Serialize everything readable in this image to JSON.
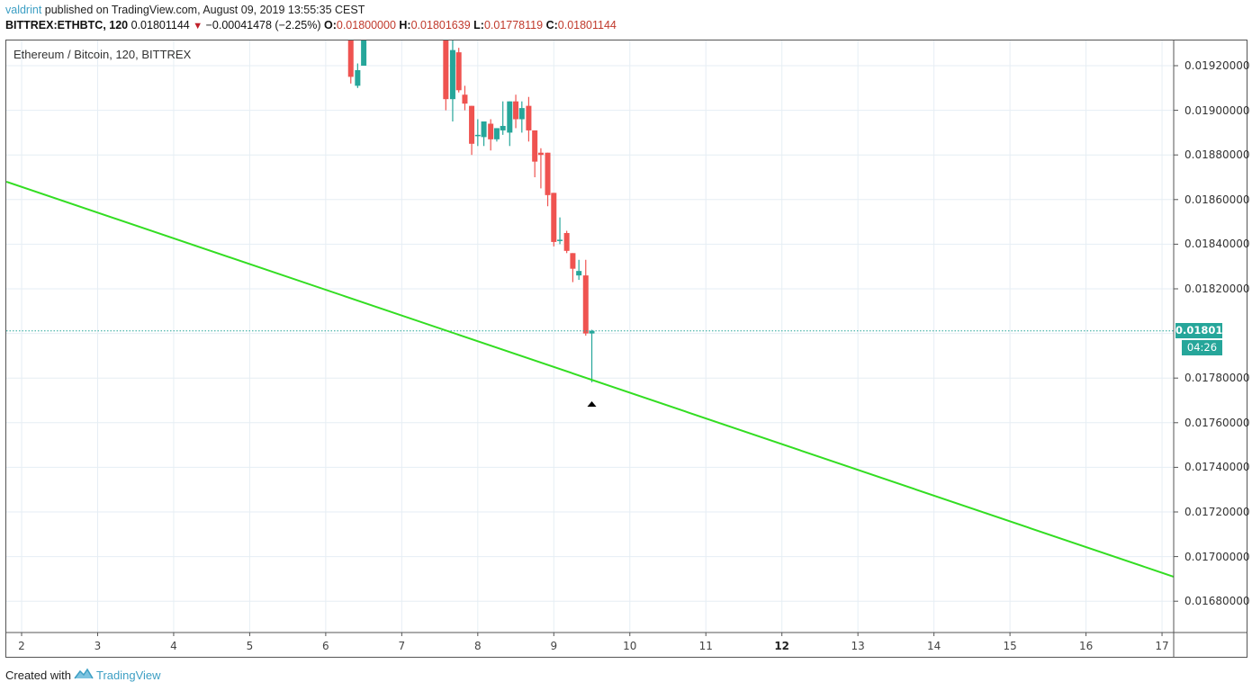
{
  "header": {
    "user": "valdrint",
    "published_text": " published on TradingView.com, August 09, 2019 13:55:35 CEST"
  },
  "quote": {
    "symbol": "BITTREX:ETHBTC, 120",
    "last": "0.01801144",
    "change_arrow": "▼",
    "change": "−0.00041478 (−2.25%)",
    "o_label": "O:",
    "o": "0.01800000",
    "h_label": "H:",
    "h": "0.01801639",
    "l_label": "L:",
    "l": "0.01778119",
    "c_label": "C:",
    "c": "0.01801144"
  },
  "legend": {
    "title": "Ethereum / Bitcoin, 120, BITTREX"
  },
  "price_tag": {
    "last": "0.01801144",
    "countdown": "04:26"
  },
  "footer": {
    "created_with": "Created with",
    "brand": "TradingView"
  },
  "colors": {
    "up": "#26a69a",
    "down": "#ef5350",
    "trendline": "#33dd22",
    "grid": "#e6eef4",
    "last_price_line": "#26a69a"
  },
  "chart_data": {
    "type": "candlestick",
    "title": "Ethereum / Bitcoin, 120, BITTREX",
    "xlabel": "",
    "ylabel": "",
    "x_ticks": [
      "2",
      "3",
      "4",
      "5",
      "6",
      "7",
      "8",
      "9",
      "10",
      "11",
      "12",
      "13",
      "14",
      "15",
      "16",
      "17"
    ],
    "y_ticks": [
      "0.01920000",
      "0.01900000",
      "0.01880000",
      "0.01860000",
      "0.01840000",
      "0.01820000",
      "0.01780000",
      "0.01760000",
      "0.01740000",
      "0.01720000",
      "0.01700000",
      "0.01680000"
    ],
    "ylim": [
      0.0167,
      0.01932
    ],
    "grid": true,
    "last_price": 0.01801144,
    "candles": [
      {
        "x": 6.33,
        "o": 0.0194,
        "h": 0.0194,
        "l": 0.01912,
        "c": 0.01915
      },
      {
        "x": 6.42,
        "o": 0.01911,
        "h": 0.01921,
        "l": 0.0191,
        "c": 0.01918
      },
      {
        "x": 6.5,
        "o": 0.0192,
        "h": 0.0194,
        "l": 0.0192,
        "c": 0.0194
      },
      {
        "x": 7.58,
        "o": 0.0194,
        "h": 0.0194,
        "l": 0.019,
        "c": 0.01905
      },
      {
        "x": 7.67,
        "o": 0.01905,
        "h": 0.01937,
        "l": 0.01895,
        "c": 0.01927
      },
      {
        "x": 7.75,
        "o": 0.01926,
        "h": 0.01928,
        "l": 0.01908,
        "c": 0.01909
      },
      {
        "x": 7.83,
        "o": 0.01907,
        "h": 0.01911,
        "l": 0.019,
        "c": 0.01903
      },
      {
        "x": 7.92,
        "o": 0.01902,
        "h": 0.01902,
        "l": 0.0188,
        "c": 0.01885
      },
      {
        "x": 8.0,
        "o": 0.01889,
        "h": 0.01896,
        "l": 0.01884,
        "c": 0.01889
      },
      {
        "x": 8.08,
        "o": 0.01888,
        "h": 0.01895,
        "l": 0.01884,
        "c": 0.01895
      },
      {
        "x": 8.17,
        "o": 0.01894,
        "h": 0.01896,
        "l": 0.01882,
        "c": 0.01887
      },
      {
        "x": 8.25,
        "o": 0.01887,
        "h": 0.01892,
        "l": 0.01886,
        "c": 0.01892
      },
      {
        "x": 8.33,
        "o": 0.01891,
        "h": 0.01904,
        "l": 0.01889,
        "c": 0.01893
      },
      {
        "x": 8.42,
        "o": 0.0189,
        "h": 0.01904,
        "l": 0.01884,
        "c": 0.01904
      },
      {
        "x": 8.5,
        "o": 0.01904,
        "h": 0.01907,
        "l": 0.01892,
        "c": 0.01896
      },
      {
        "x": 8.58,
        "o": 0.01896,
        "h": 0.01904,
        "l": 0.0189,
        "c": 0.01901
      },
      {
        "x": 8.67,
        "o": 0.01902,
        "h": 0.01906,
        "l": 0.01886,
        "c": 0.01891
      },
      {
        "x": 8.75,
        "o": 0.01891,
        "h": 0.01891,
        "l": 0.0187,
        "c": 0.01877
      },
      {
        "x": 8.83,
        "o": 0.01881,
        "h": 0.01883,
        "l": 0.01865,
        "c": 0.0188
      },
      {
        "x": 8.92,
        "o": 0.01881,
        "h": 0.01881,
        "l": 0.01857,
        "c": 0.01862
      },
      {
        "x": 9.0,
        "o": 0.01863,
        "h": 0.01863,
        "l": 0.01839,
        "c": 0.01841
      },
      {
        "x": 9.08,
        "o": 0.01842,
        "h": 0.01852,
        "l": 0.0184,
        "c": 0.01842
      },
      {
        "x": 9.17,
        "o": 0.01845,
        "h": 0.01846,
        "l": 0.01836,
        "c": 0.01837
      },
      {
        "x": 9.25,
        "o": 0.01836,
        "h": 0.01836,
        "l": 0.01823,
        "c": 0.01829
      },
      {
        "x": 9.33,
        "o": 0.01826,
        "h": 0.01833,
        "l": 0.01824,
        "c": 0.01828
      },
      {
        "x": 9.42,
        "o": 0.01826,
        "h": 0.01833,
        "l": 0.01799,
        "c": 0.018
      },
      {
        "x": 9.5,
        "o": 0.018,
        "h": 0.01801639,
        "l": 0.01778119,
        "c": 0.01801144
      }
    ],
    "annotations": [
      {
        "type": "trendline",
        "color": "#33dd22",
        "from": {
          "x": 1.8,
          "price": 0.01868
        },
        "to": {
          "x": 17.15,
          "price": 0.01691
        }
      },
      {
        "type": "arrow-up-marker",
        "x": 9.5,
        "price": 0.0177
      }
    ]
  }
}
